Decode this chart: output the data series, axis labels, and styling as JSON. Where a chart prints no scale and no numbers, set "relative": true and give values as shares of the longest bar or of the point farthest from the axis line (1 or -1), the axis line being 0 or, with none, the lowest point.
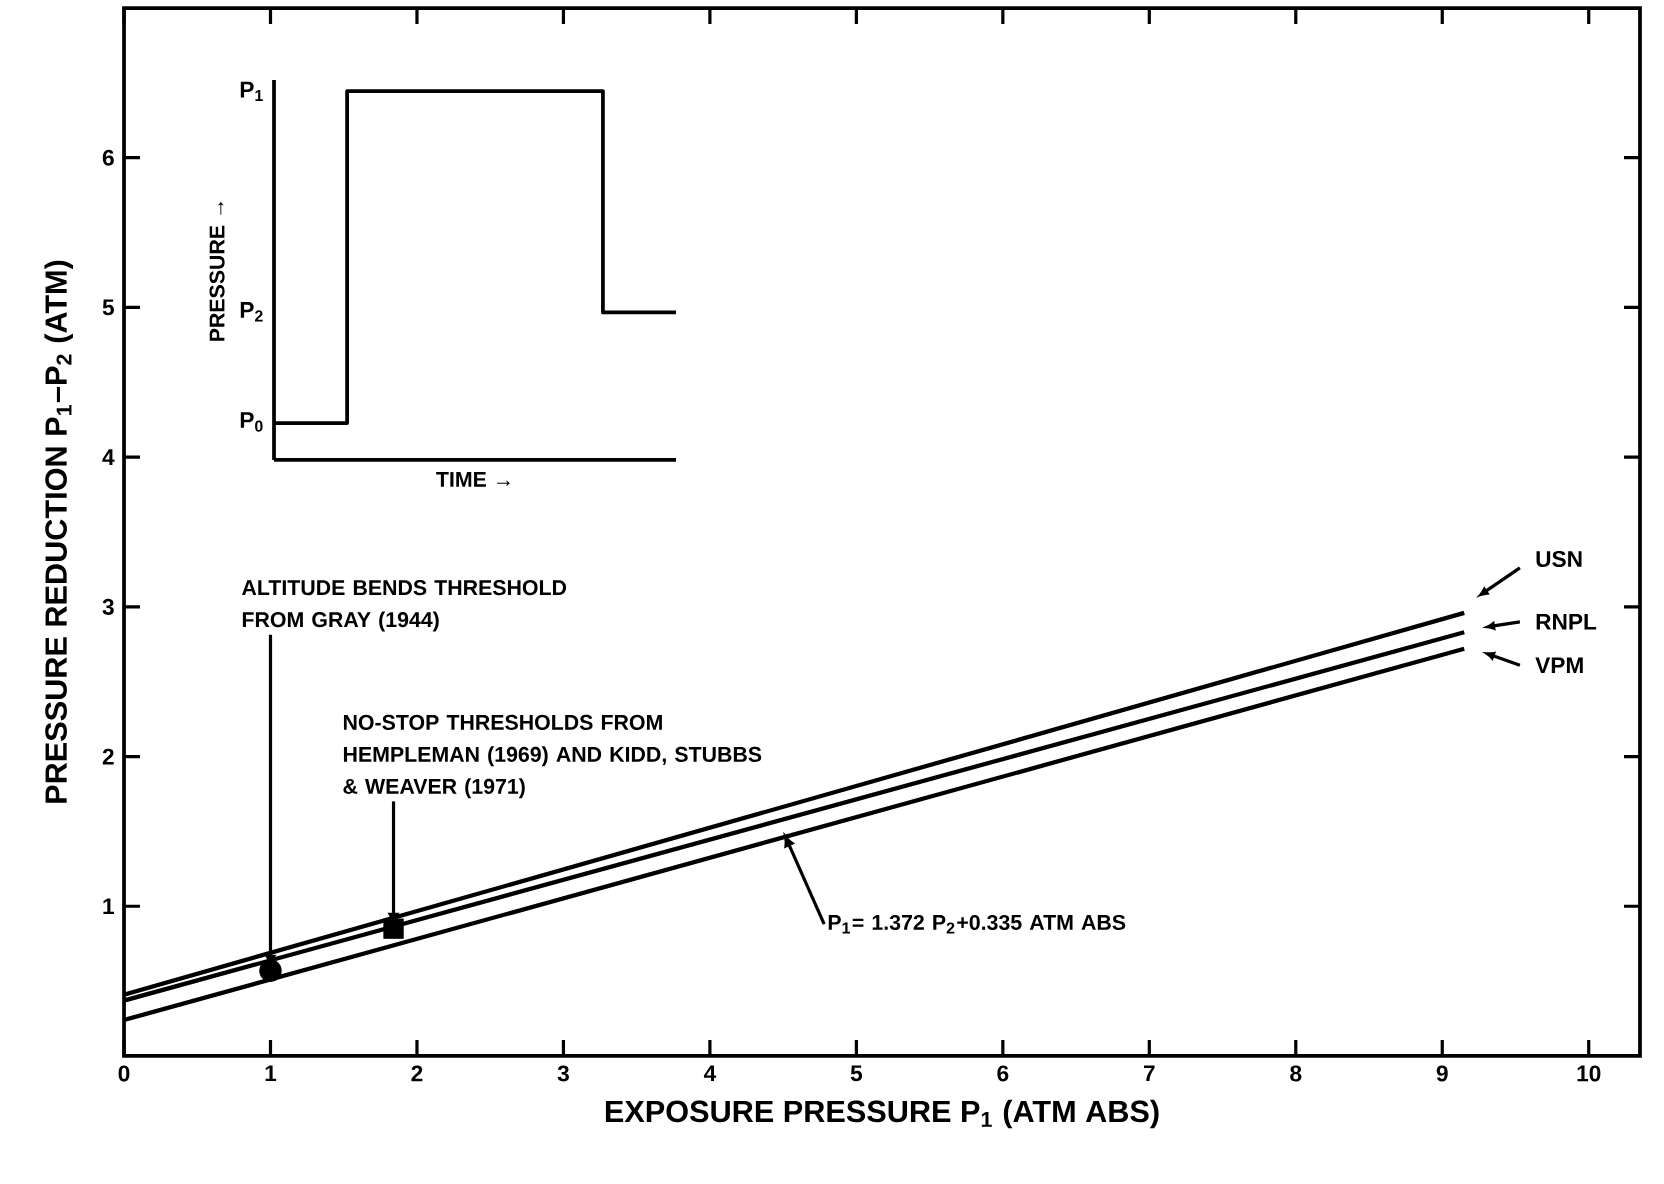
{
  "chart_data": [
    {
      "type": "line",
      "xlabel": "EXPOSURE PRESSURE P$_{1}$ (ATM ABS)",
      "ylabel": "PRESSURE REDUCTION P$_{1}$–P$_{2}$ (ATM)",
      "xlim": [
        0,
        10.35
      ],
      "ylim": [
        0,
        7
      ],
      "xticks": [
        0,
        1,
        2,
        3,
        4,
        5,
        6,
        7,
        8,
        9,
        10
      ],
      "yticks": [
        1,
        2,
        3,
        4,
        5,
        6
      ],
      "grid": false,
      "legend": "right",
      "series": [
        {
          "name": "USN",
          "color": "#000000",
          "x": [
            0,
            9.15
          ],
          "values": [
            0.41,
            2.96
          ]
        },
        {
          "name": "RNPL",
          "color": "#000000",
          "x": [
            0,
            9.15
          ],
          "values": [
            0.37,
            2.83
          ]
        },
        {
          "name": "VPM",
          "color": "#000000",
          "x": [
            0,
            9.15
          ],
          "values": [
            0.24,
            2.72
          ]
        },
        {
          "type": "scatter",
          "marker": "circle",
          "color": "#000000",
          "x": [
            1.0
          ],
          "values": [
            0.57
          ]
        },
        {
          "type": "scatter",
          "marker": "square",
          "color": "#000000",
          "x": [
            1.84
          ],
          "values": [
            0.85
          ]
        }
      ],
      "annotations": [
        {
          "text": "ALTITUDE BENDS THRESHOLD FROM GRAY (1944)",
          "x": 1.0,
          "y": 0.57
        },
        {
          "text": "NO-STOP THRESHOLDS FROM HEMPLEMAN (1969) AND KIDD, STUBBS & WEAVER (1971)",
          "x": 1.84,
          "y": 0.85
        },
        {
          "text": "P$_{1}$= 1.372 P$_{2}$+0.335 ATM ABS",
          "x": 4.5,
          "y": 1.46
        }
      ]
    },
    {
      "type": "step",
      "xlabel": "TIME →",
      "ylabel": "PRESSURE →",
      "relative": true,
      "tick_labels": false,
      "categories": [
        null,
        null,
        null,
        null,
        null,
        null,
        null,
        null,
        null,
        null,
        null,
        null
      ],
      "series": [
        {
          "color": "#000000",
          "values": [
            0.1,
            0.1,
            1,
            1,
            1,
            1,
            1,
            1,
            1,
            0.4,
            0.4,
            0.4
          ]
        }
      ],
      "annotations": [
        "P$_{1}$",
        "P$_{2}$",
        "P$_{0}$"
      ]
    }
  ]
}
